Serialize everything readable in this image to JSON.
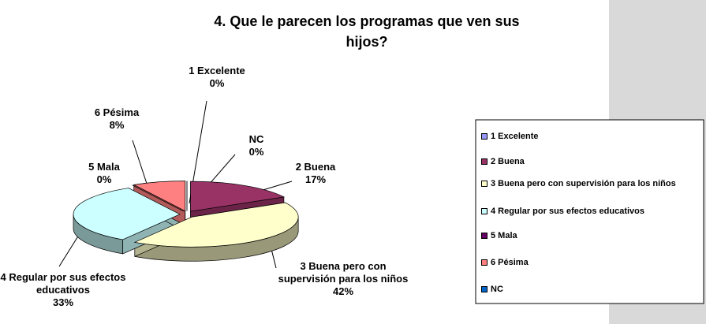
{
  "chart_data": {
    "type": "pie",
    "title": "4. Que le parecen los programas que ven sus hijos?",
    "categories": [
      "1 Excelente",
      "2 Buena",
      "3 Buena pero con supervisión para los niños",
      "4 Regular por sus efectos educativos",
      "5 Mala",
      "6 Pésima",
      "NC"
    ],
    "values": [
      0,
      17,
      42,
      33,
      0,
      8,
      0
    ],
    "value_labels": [
      "0%",
      "17%",
      "42%",
      "33%",
      "0%",
      "8%",
      "0%"
    ],
    "colors": [
      "#9999ff",
      "#993366",
      "#ffffcc",
      "#ccffff",
      "#660066",
      "#ff8080",
      "#0066cc"
    ],
    "legend": "right"
  }
}
